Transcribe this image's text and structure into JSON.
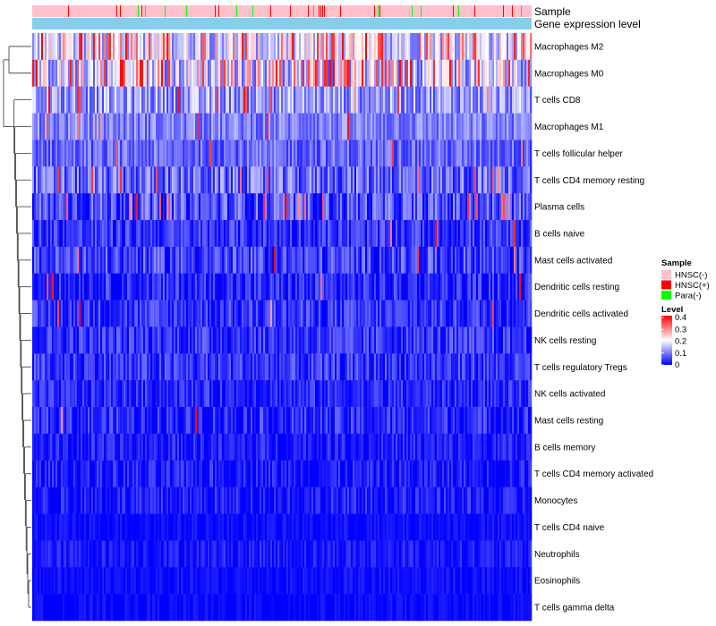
{
  "chart_data": {
    "type": "heatmap",
    "title": "",
    "column_annotations": [
      {
        "name": "Sample"
      },
      {
        "name": "Gene expression level"
      }
    ],
    "rows": [
      {
        "label": "Macrophages M2",
        "mean": 0.17,
        "spread": 0.09,
        "hot": 0.16
      },
      {
        "label": "Macrophages M0",
        "mean": 0.16,
        "spread": 0.1,
        "hot": 0.22
      },
      {
        "label": "T cells CD8",
        "mean": 0.12,
        "spread": 0.07,
        "hot": 0.05
      },
      {
        "label": "Macrophages M1",
        "mean": 0.1,
        "spread": 0.05,
        "hot": 0.02
      },
      {
        "label": "T cells follicular helper",
        "mean": 0.08,
        "spread": 0.05,
        "hot": 0.01
      },
      {
        "label": "T cells CD4 memory resting",
        "mean": 0.08,
        "spread": 0.07,
        "hot": 0.05
      },
      {
        "label": "Plasma cells",
        "mean": 0.06,
        "spread": 0.07,
        "hot": 0.04
      },
      {
        "label": "B cells naive",
        "mean": 0.04,
        "spread": 0.05,
        "hot": 0.01
      },
      {
        "label": "Mast cells activated",
        "mean": 0.05,
        "spread": 0.06,
        "hot": 0.01
      },
      {
        "label": "Dendritic cells resting",
        "mean": 0.03,
        "spread": 0.05,
        "hot": 0.01
      },
      {
        "label": "Dendritic cells activated",
        "mean": 0.04,
        "spread": 0.05,
        "hot": 0.01
      },
      {
        "label": "NK cells resting",
        "mean": 0.04,
        "spread": 0.05,
        "hot": 0.005
      },
      {
        "label": "T cells regulatory  Tregs",
        "mean": 0.04,
        "spread": 0.05,
        "hot": 0.005
      },
      {
        "label": "NK cells activated",
        "mean": 0.03,
        "spread": 0.04,
        "hot": 0.0
      },
      {
        "label": "Mast cells resting",
        "mean": 0.03,
        "spread": 0.05,
        "hot": 0.005
      },
      {
        "label": "B cells memory",
        "mean": 0.02,
        "spread": 0.04,
        "hot": 0.0
      },
      {
        "label": "T cells CD4 memory activated",
        "mean": 0.02,
        "spread": 0.04,
        "hot": 0.0
      },
      {
        "label": "Monocytes",
        "mean": 0.02,
        "spread": 0.04,
        "hot": 0.0
      },
      {
        "label": "T cells CD4 naive",
        "mean": 0.01,
        "spread": 0.02,
        "hot": 0.0
      },
      {
        "label": "Neutrophils",
        "mean": 0.02,
        "spread": 0.03,
        "hot": 0.0
      },
      {
        "label": "Eosinophils",
        "mean": 0.01,
        "spread": 0.02,
        "hot": 0.0
      },
      {
        "label": "T cells gamma delta",
        "mean": 0.005,
        "spread": 0.02,
        "hot": 0.0
      }
    ],
    "sample_groups": [
      {
        "name": "HNSC(-)",
        "color": "#FFC0CB",
        "share": 0.86
      },
      {
        "name": "HNSC(+)",
        "color": "#FF0000",
        "share": 0.08
      },
      {
        "name": "Para(-)",
        "color": "#00FF00",
        "share": 0.06
      }
    ],
    "expression_level_color": "#87CEEB",
    "color_scale": {
      "title": "Level",
      "min": 0,
      "max": 0.4,
      "ticks": [
        "0.4",
        "0.3",
        "0.2",
        "0.1",
        "0"
      ],
      "colors": [
        "#0000FF",
        "#FFFFFF",
        "#FF0000"
      ]
    },
    "legend": {
      "placement": "right",
      "sample_title": "Sample"
    },
    "row_dendrogram": true
  }
}
